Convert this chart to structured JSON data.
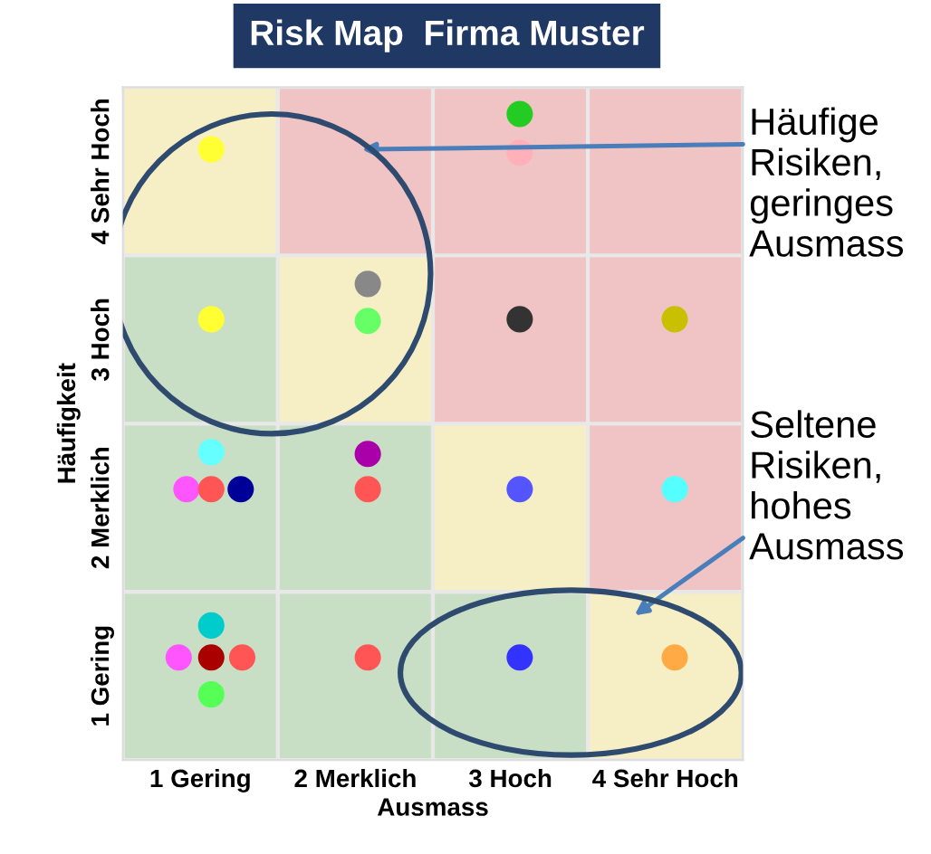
{
  "chart_data": {
    "type": "scatter",
    "title": "Risk Map  Firma Muster",
    "xlabel": "Ausmass",
    "ylabel": "Häufigkeit",
    "xlim": [
      0.5,
      4.5
    ],
    "ylim": [
      0.5,
      4.5
    ],
    "xticks": [
      {
        "value": 1,
        "label": "1 Gering"
      },
      {
        "value": 2,
        "label": "2 Merklich"
      },
      {
        "value": 3,
        "label": "3 Hoch"
      },
      {
        "value": 4,
        "label": "4 Sehr Hoch"
      }
    ],
    "yticks": [
      {
        "value": 1,
        "label": "1 Gering"
      },
      {
        "value": 2,
        "label": "2 Merklich"
      },
      {
        "value": 3,
        "label": "3 Hoch"
      },
      {
        "value": 4,
        "label": "4 Sehr Hoch"
      }
    ],
    "grid": false,
    "legend": false,
    "marker": "circle",
    "series": [
      {
        "x": [
          1.07,
          3.06,
          3.06,
          1.07,
          2.08,
          2.08,
          3.06,
          4.06,
          1.07,
          0.91,
          1.07,
          1.26,
          2.08,
          2.08,
          3.06,
          4.06,
          1.07,
          0.86,
          1.07,
          1.27,
          1.07,
          2.08,
          3.06,
          4.06
        ],
        "values": [
          4.13,
          4.34,
          4.11,
          3.12,
          3.33,
          3.11,
          3.12,
          3.12,
          2.33,
          2.11,
          2.11,
          2.11,
          2.32,
          2.11,
          2.11,
          2.11,
          1.3,
          1.11,
          1.11,
          1.11,
          0.89,
          1.11,
          1.11,
          1.11
        ],
        "colors": [
          "#ffff33",
          "#22cc22",
          "#ffb0b8",
          "#ffff33",
          "#888888",
          "#66ff66",
          "#333333",
          "#c8c000",
          "#66ffff",
          "#ff55ff",
          "#ff5555",
          "#000099",
          "#aa00aa",
          "#ff5555",
          "#5555ff",
          "#55ffff",
          "#00cccc",
          "#ff55ff",
          "#aa0000",
          "#ff5555",
          "#55ff55",
          "#ff5555",
          "#3333ff",
          "#ffaa44"
        ]
      }
    ],
    "annotations": [
      "Häufige\nRisiken,\ngeringes\nAusmass",
      "Seltene\nRisiken,\nhohes\nAusmass"
    ]
  }
}
